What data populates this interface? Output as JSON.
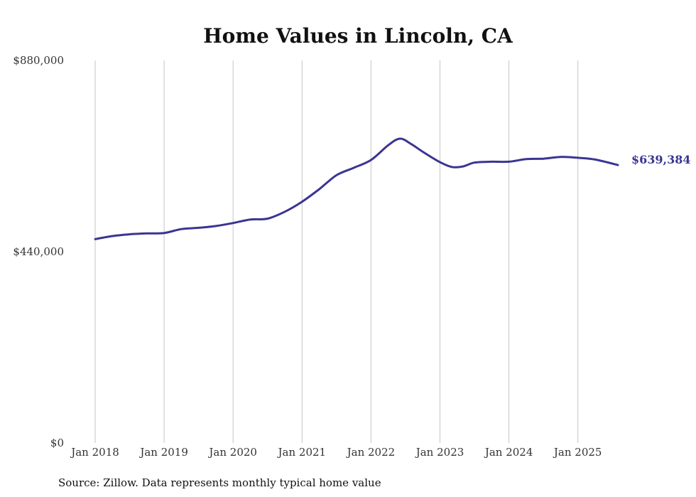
{
  "chart_data": {
    "type": "line",
    "title": "Home Values in Lincoln, CA",
    "xlabel": "",
    "ylabel": "",
    "ylim": [
      0,
      880000
    ],
    "y_ticks": [
      "$880,000",
      "$440,000",
      "$0"
    ],
    "y_tick_values": [
      880000,
      440000,
      0
    ],
    "x_ticks": [
      "Jan 2018",
      "Jan 2019",
      "Jan 2020",
      "Jan 2021",
      "Jan 2022",
      "Jan 2023",
      "Jan 2024",
      "Jan 2025"
    ],
    "x_tick_values": [
      2018.0,
      2019.0,
      2020.0,
      2021.0,
      2022.0,
      2023.0,
      2024.0,
      2025.0
    ],
    "grid": "vertical",
    "line_color": "#3a3592",
    "end_label": "$639,384",
    "series": [
      {
        "name": "",
        "x": [
          2018.0,
          2018.25,
          2018.5,
          2018.75,
          2019.0,
          2019.25,
          2019.5,
          2019.75,
          2020.0,
          2020.25,
          2020.5,
          2020.75,
          2021.0,
          2021.25,
          2021.5,
          2021.75,
          2022.0,
          2022.25,
          2022.42,
          2022.58,
          2022.75,
          2023.0,
          2023.17,
          2023.33,
          2023.5,
          2023.75,
          2024.0,
          2024.25,
          2024.5,
          2024.75,
          2025.0,
          2025.25,
          2025.58
        ],
        "y": [
          469000,
          476000,
          480000,
          482000,
          483000,
          492000,
          495000,
          499000,
          506000,
          514000,
          516000,
          532000,
          555000,
          584000,
          616000,
          633000,
          651000,
          685000,
          700000,
          688000,
          670000,
          646000,
          635000,
          636000,
          645000,
          647000,
          647000,
          653000,
          654000,
          658000,
          656000,
          652000,
          639384
        ]
      }
    ]
  },
  "footer": {
    "source": "Source: Zillow. Data represents monthly typical home value"
  }
}
